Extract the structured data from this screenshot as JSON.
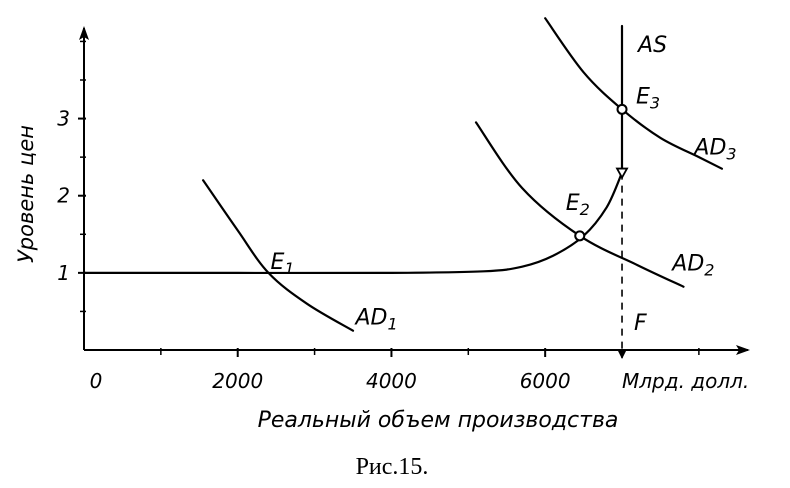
{
  "caption": "Рис.15.",
  "chart_data": {
    "type": "line",
    "xlabel": "Реальный объем производства",
    "ylabel": "Уровень цен",
    "x_unit": "Млрд. долл.",
    "x_ticks": [
      "0",
      "2000",
      "4000",
      "6000"
    ],
    "y_ticks": [
      "1",
      "2",
      "3"
    ],
    "xlim": [
      0,
      8600
    ],
    "ylim": [
      0,
      4.2
    ],
    "grid": false,
    "series": [
      {
        "name": "AS",
        "points": [
          [
            0,
            1.0
          ],
          [
            2000,
            1.0
          ],
          [
            4000,
            1.0
          ],
          [
            5200,
            1.02
          ],
          [
            5700,
            1.08
          ],
          [
            6100,
            1.22
          ],
          [
            6500,
            1.48
          ],
          [
            6800,
            1.85
          ],
          [
            7000,
            2.3
          ],
          [
            7000,
            3.2
          ],
          [
            7000,
            4.2
          ]
        ]
      },
      {
        "name": "AD1",
        "points": [
          [
            1550,
            2.2
          ],
          [
            2000,
            1.55
          ],
          [
            2400,
            1.0
          ],
          [
            2900,
            0.6
          ],
          [
            3500,
            0.25
          ]
        ]
      },
      {
        "name": "AD2",
        "points": [
          [
            5100,
            2.95
          ],
          [
            5700,
            2.1
          ],
          [
            6450,
            1.48
          ],
          [
            7200,
            1.1
          ],
          [
            7800,
            0.82
          ]
        ]
      },
      {
        "name": "AD3",
        "points": [
          [
            6000,
            4.3
          ],
          [
            6500,
            3.6
          ],
          [
            7000,
            3.12
          ],
          [
            7500,
            2.75
          ],
          [
            8000,
            2.5
          ],
          [
            8300,
            2.35
          ]
        ]
      }
    ],
    "equilibria": [
      {
        "label": "E1",
        "x": 2400,
        "y": 1.0,
        "marker": false
      },
      {
        "label": "E2",
        "x": 6450,
        "y": 1.48,
        "marker": true
      },
      {
        "label": "E3",
        "x": 7000,
        "y": 3.12,
        "marker": true
      }
    ],
    "special_points": [
      {
        "label": "",
        "x": 7000,
        "y": 2.3,
        "marker": "triangle"
      }
    ],
    "vertical_reference": {
      "label": "F",
      "x": 7000
    }
  }
}
